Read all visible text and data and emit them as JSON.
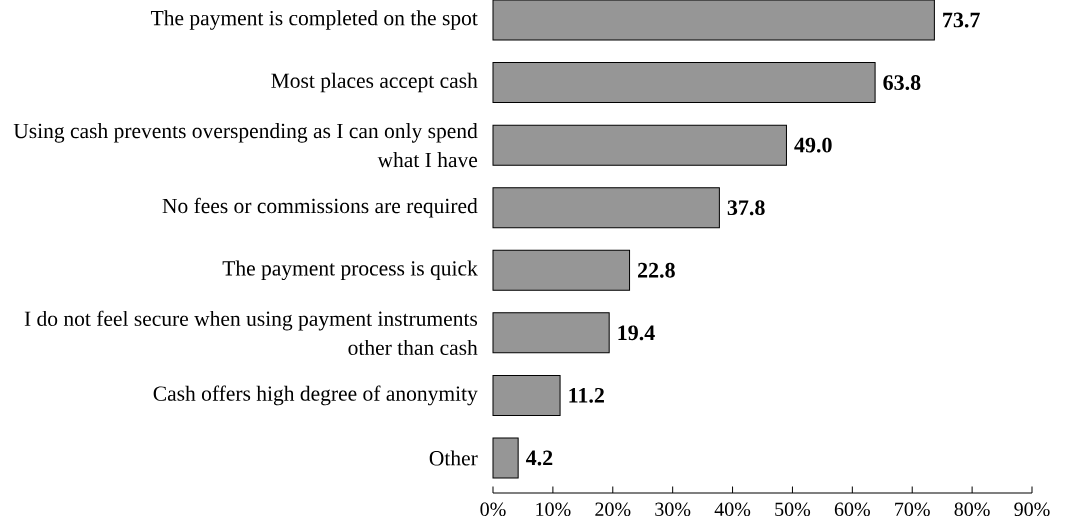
{
  "chart_data": {
    "type": "bar",
    "orientation": "horizontal",
    "categories": [
      "The payment is completed on the spot",
      "Most places accept cash",
      "Using cash prevents overspending as I can only spend what I have",
      "No fees or commissions are required",
      "The payment process is quick",
      "I do not feel secure when using payment instruments other than cash",
      "Cash offers high degree of anonymity",
      "Other"
    ],
    "values": [
      73.7,
      63.8,
      49.0,
      37.8,
      22.8,
      19.4,
      11.2,
      4.2
    ],
    "value_labels": [
      "73.7",
      "63.8",
      "49.0",
      "37.8",
      "22.8",
      "19.4",
      "11.2",
      "4.2"
    ],
    "color": "#969696",
    "xlim": [
      0,
      90
    ],
    "xticks": [
      {
        "value": 0,
        "label": "0%"
      },
      {
        "value": 10,
        "label": "10%"
      },
      {
        "value": 20,
        "label": "20%"
      },
      {
        "value": 30,
        "label": "30%"
      },
      {
        "value": 40,
        "label": "40%"
      },
      {
        "value": 50,
        "label": "50%"
      },
      {
        "value": 60,
        "label": "60%"
      },
      {
        "value": 70,
        "label": "70%"
      },
      {
        "value": 80,
        "label": "80%"
      },
      {
        "value": 90,
        "label": "90%"
      }
    ],
    "grid": false
  }
}
